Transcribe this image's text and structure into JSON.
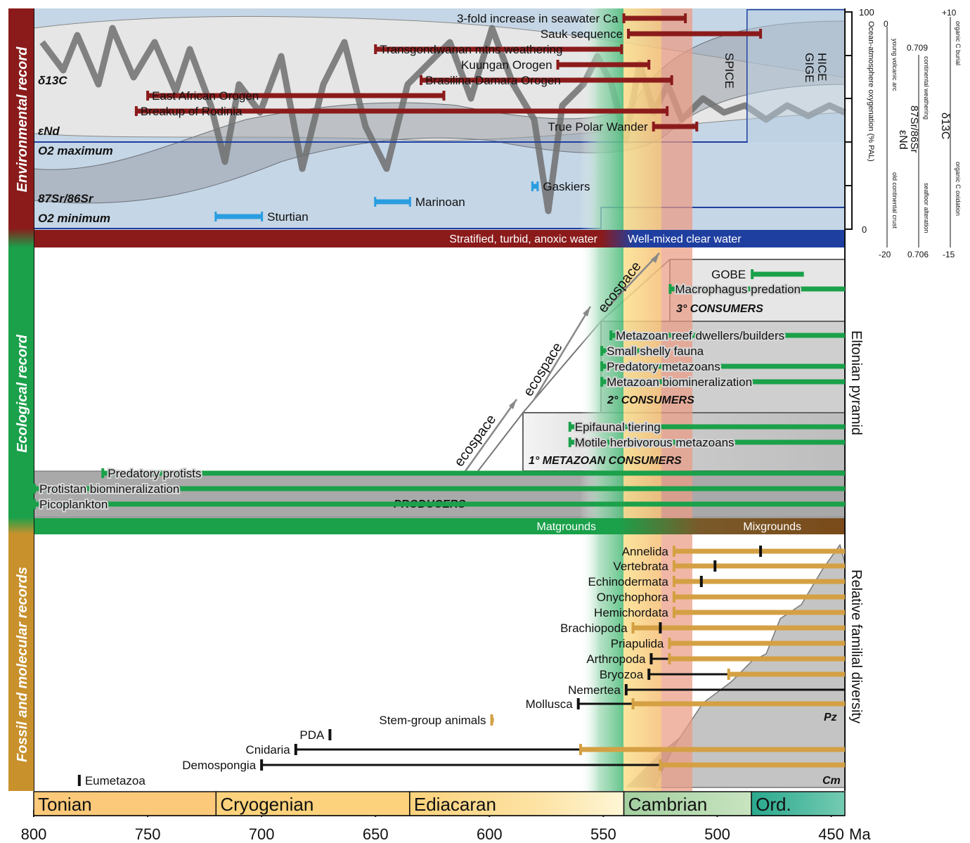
{
  "chart_data": {
    "type": "timeline",
    "x_axis": {
      "label": "Ma",
      "range": [
        800,
        444
      ],
      "reversed": true,
      "ticks": [
        800,
        750,
        700,
        650,
        600,
        550,
        500,
        450
      ]
    },
    "periods": [
      {
        "name": "Tonian",
        "start": 800,
        "end": 720
      },
      {
        "name": "Cryogenian",
        "start": 720,
        "end": 635
      },
      {
        "name": "Ediacaran",
        "start": 635,
        "end": 541
      },
      {
        "name": "Cambrian",
        "start": 541,
        "end": 485
      },
      {
        "name": "Ord.",
        "start": 485,
        "end": 444
      }
    ],
    "panels": {
      "environmental": "Environmental record",
      "ecological": "Ecological record",
      "fossil": "Fossil and molecular records"
    },
    "environmental": {
      "series_labels": [
        "δ13C",
        "εNd",
        "O2 maximum",
        "87Sr/86Sr",
        "O2 minimum"
      ],
      "right_axis": {
        "label": "Ocean-atmosphere oxygenation (% PAL)",
        "ticks": [
          100,
          0
        ]
      },
      "enD_axis": {
        "label": "εNd",
        "ticks": [
          "0",
          "-20"
        ],
        "top_note": "young volcanic arc",
        "bottom_note": "old continental crust"
      },
      "sr_axis": {
        "label": "87Sr/86Sr",
        "ticks": [
          "0.709",
          "0.706"
        ],
        "top_note": "continental weathering",
        "bottom_note": "seafloor alteration"
      },
      "c_axis": {
        "label": "δ13C",
        "ticks": [
          "+10",
          "-15"
        ],
        "top_note": "organic C burial",
        "bottom_note": "organic C oxidation"
      },
      "events": [
        {
          "label": "3-fold increase in seawater Ca",
          "start": 541,
          "end": 514
        },
        {
          "label": "Sauk sequence",
          "start": 539,
          "end": 481
        },
        {
          "label": "Transgondwanan mtns weathering",
          "start": 650,
          "end": 542
        },
        {
          "label": "Kuungan Orogen",
          "start": 570,
          "end": 530
        },
        {
          "label": "Brasilina-Damara Orogen",
          "start": 630,
          "end": 520
        },
        {
          "label": "East African Orogen",
          "start": 750,
          "end": 620
        },
        {
          "label": "Breakup of Rodinia",
          "start": 755,
          "end": 522
        },
        {
          "label": "True Polar Wander",
          "start": 528,
          "end": 509
        }
      ],
      "glaciations": [
        {
          "label": "Sturtian",
          "start": 720,
          "end": 700
        },
        {
          "label": "Marinoan",
          "start": 650,
          "end": 635
        },
        {
          "label": "Gaskiers",
          "start": 581,
          "end": 579
        }
      ],
      "named_events": [
        "SPICE",
        "HICE",
        "GIGE"
      ],
      "water_bar": {
        "left": "Stratified, turbid, anoxic water",
        "right": "Well-mixed clear water"
      }
    },
    "ecological": {
      "right_label": "Eltonian pyramid",
      "ecospace": "ecospace",
      "tiers": [
        "PRODUCERS",
        "1° METAZOAN CONSUMERS",
        "2° CONSUMERS",
        "3° CONSUMERS"
      ],
      "ranges": [
        {
          "label": "GOBE",
          "start": 485,
          "end": 462
        },
        {
          "label": "Macrophagus predation",
          "start": 521,
          "end": 444
        },
        {
          "label": "Metazoan reef dwellers/builders",
          "start": 547,
          "end": 444
        },
        {
          "label": "Small shelly fauna",
          "start": 551,
          "end": 529
        },
        {
          "label": "Predatory metazoans",
          "start": 551,
          "end": 444
        },
        {
          "label": "Metazoan biomineralization",
          "start": 551,
          "end": 444
        },
        {
          "label": "Epifaunal tiering",
          "start": 565,
          "end": 444
        },
        {
          "label": "Motile herbivorous metazoans",
          "start": 565,
          "end": 444
        },
        {
          "label": "Predatory protists",
          "start": 770,
          "end": 444
        },
        {
          "label": "Protistan biomineralization",
          "start": 800,
          "end": 444
        },
        {
          "label": "Picoplankton",
          "start": 800,
          "end": 444
        }
      ],
      "substrate_bar": {
        "left": "Matgrounds",
        "right": "Mixgrounds"
      }
    },
    "fossil": {
      "right_label": "Relative familial diversity",
      "curve_labels": [
        "Pz",
        "Cm"
      ],
      "taxa": [
        {
          "label": "Annelida",
          "fossil_start": 519,
          "molecular": 481
        },
        {
          "label": "Vertebrata",
          "fossil_start": 519,
          "molecular": 501
        },
        {
          "label": "Echinodermata",
          "fossil_start": 519,
          "molecular": 507
        },
        {
          "label": "Onychophora",
          "fossil_start": 519
        },
        {
          "label": "Hemichordata",
          "fossil_start": 519
        },
        {
          "label": "Brachiopoda",
          "fossil_start": 537,
          "molecular": 525
        },
        {
          "label": "Priapulida",
          "fossil_start": 521
        },
        {
          "label": "Arthropoda",
          "fossil_start": 521,
          "molecular": 529
        },
        {
          "label": "Bryozoa",
          "fossil_start": 495,
          "molecular": 530
        },
        {
          "label": "Nemertea",
          "molecular": 540
        },
        {
          "label": "Mollusca",
          "fossil_start": 537,
          "molecular": 561
        },
        {
          "label": "Stem-group animals",
          "fossil_start": 599
        },
        {
          "label": "PDA",
          "molecular": 670
        },
        {
          "label": "Cnidaria",
          "fossil_start": 560,
          "molecular": 685
        },
        {
          "label": "Demospongia",
          "fossil_start": 525,
          "molecular": 700
        },
        {
          "label": "Eumetazoa",
          "molecular": 780
        }
      ]
    }
  }
}
